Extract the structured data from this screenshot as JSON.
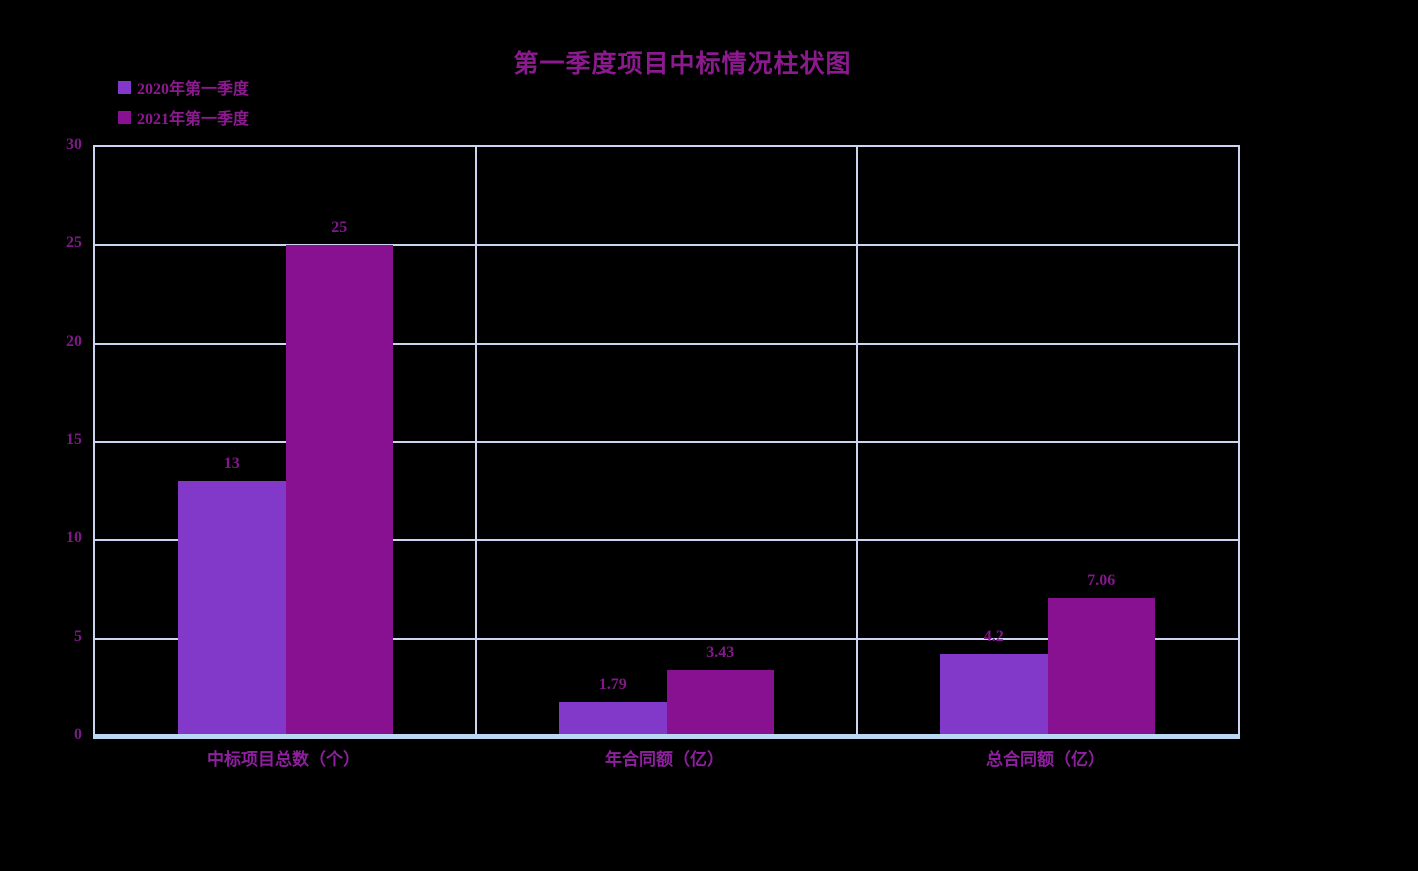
{
  "chart_data": {
    "type": "bar",
    "title": "第一季度项目中标情况柱状图",
    "categories": [
      "中标项目总数（个）",
      "年合同额（亿）",
      "总合同额（亿）"
    ],
    "series": [
      {
        "name": "2020年第一季度",
        "color": "#8238C8",
        "values": [
          13,
          1.79,
          4.2
        ],
        "labels": [
          "13",
          "1.79",
          "4.2"
        ]
      },
      {
        "name": "2021年第一季度",
        "color": "#871190",
        "values": [
          25,
          3.43,
          7.06
        ],
        "labels": [
          "25",
          "3.43",
          "7.06"
        ]
      }
    ],
    "ylim": [
      0,
      30
    ],
    "yticks": [
      0,
      5,
      10,
      15,
      20,
      25,
      30
    ],
    "xlabel": "",
    "ylabel": "",
    "grid": "horizontal",
    "legend_position": "top-left"
  },
  "colors": {
    "background": "#000000",
    "title_text": "#8B1A8E",
    "axis_text": "#7D1A86",
    "category_text": "#8E1F9E",
    "value_label_text": "#82188A",
    "grid_line": "#CBD5F0",
    "axis_line": "#BAD8F2"
  }
}
